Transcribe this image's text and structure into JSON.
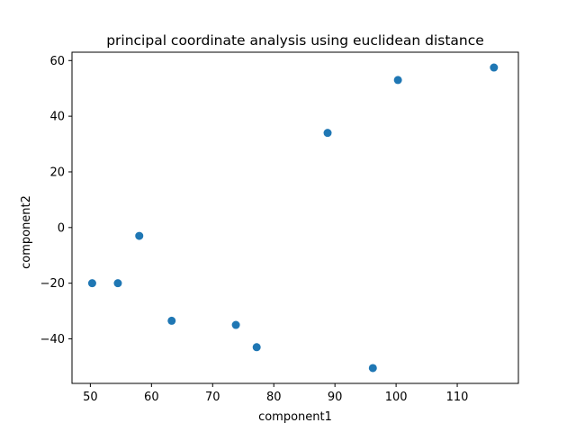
{
  "chart_data": {
    "type": "scatter",
    "title": "principal coordinate analysis using euclidean distance",
    "xlabel": "component1",
    "ylabel": "component2",
    "xlim": [
      47,
      120
    ],
    "ylim": [
      -56,
      63
    ],
    "xticks": [
      50,
      60,
      70,
      80,
      90,
      100,
      110
    ],
    "yticks": [
      -40,
      -20,
      0,
      20,
      40,
      60
    ],
    "grid": false,
    "marker_color": "#1f77b4",
    "points": [
      {
        "x": 50.3,
        "y": -20.0
      },
      {
        "x": 54.5,
        "y": -20.0
      },
      {
        "x": 58.0,
        "y": -3.0
      },
      {
        "x": 63.3,
        "y": -33.5
      },
      {
        "x": 73.8,
        "y": -35.0
      },
      {
        "x": 77.2,
        "y": -43.0
      },
      {
        "x": 88.8,
        "y": 34.0
      },
      {
        "x": 96.2,
        "y": -50.5
      },
      {
        "x": 100.3,
        "y": 53.0
      },
      {
        "x": 116.0,
        "y": 57.5
      }
    ]
  }
}
